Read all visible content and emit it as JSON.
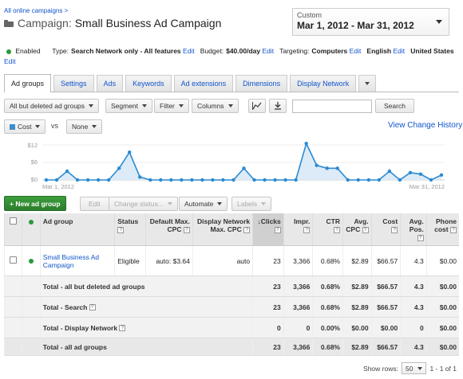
{
  "header": {
    "breadcrumb": "All online campaigns >",
    "title_prefix": "Campaign:",
    "title_name": "Small Business Ad Campaign"
  },
  "date_range": {
    "label": "Custom",
    "value": "Mar 1, 2012 - Mar 31, 2012"
  },
  "settings": {
    "status": "Enabled",
    "type_label": "Type:",
    "type_value": "Search Network only - All features",
    "budget_label": "Budget:",
    "budget_value": "$40.00/day",
    "targeting_label": "Targeting:",
    "targeting_value": "Computers",
    "language": "English",
    "location": "United States",
    "edit": "Edit"
  },
  "tabs": [
    "Ad groups",
    "Settings",
    "Ads",
    "Keywords",
    "Ad extensions",
    "Dimensions",
    "Display Network"
  ],
  "toolbar": {
    "filter_view": "All but deleted ad groups",
    "segment": "Segment",
    "filter": "Filter",
    "columns": "Columns",
    "search_button": "Search"
  },
  "chart_controls": {
    "metric1": "Cost",
    "vs": "vs",
    "metric2": "None",
    "view_history": "View Change History"
  },
  "chart_data": {
    "type": "line",
    "series": [
      {
        "name": "Cost",
        "values": [
          0,
          0,
          3,
          0,
          0,
          0,
          0,
          4,
          9.5,
          1,
          0,
          0,
          0,
          0,
          0,
          0,
          0,
          0,
          0,
          4,
          0,
          0,
          0,
          0,
          0,
          12.5,
          5,
          4,
          4,
          0,
          0,
          0,
          0,
          3,
          0,
          2.5,
          2,
          0,
          1.7
        ]
      },
      {
        "name": "",
        "values": []
      }
    ],
    "x_start_label": "Mar 1, 2012",
    "x_end_label": "Mar 31, 2012",
    "y_ticks": [
      "$12",
      "$6",
      "$0"
    ],
    "ylim": [
      0,
      12
    ],
    "color": "#2a8ad2"
  },
  "actions": {
    "new_ad_group": "+ New ad group",
    "edit": "Edit",
    "change_status": "Change status...",
    "automate": "Automate",
    "labels": "Labels"
  },
  "table": {
    "headers": {
      "ad_group": "Ad group",
      "status": "Status",
      "default_cpc": "Default Max. CPC",
      "display_cpc": "Display Network Max. CPC",
      "clicks": "Clicks",
      "impr": "Impr.",
      "ctr": "CTR",
      "avg_cpc": "Avg. CPC",
      "cost": "Cost",
      "avg_pos": "Avg. Pos.",
      "phone_cost": "Phone cost"
    },
    "help_mark": "?",
    "rows": [
      {
        "name": "Small Business Ad Campaign",
        "status": "Eligible",
        "default_cpc": "auto: $3.64",
        "display_cpc": "auto",
        "clicks": "23",
        "impr": "3,366",
        "ctr": "0.68%",
        "avg_cpc": "$2.89",
        "cost": "$66.57",
        "avg_pos": "4.3",
        "phone_cost": "$0.00"
      }
    ],
    "totals": [
      {
        "name": "Total - all but deleted ad groups",
        "clicks": "23",
        "impr": "3,366",
        "ctr": "0.68%",
        "avg_cpc": "$2.89",
        "cost": "$66.57",
        "avg_pos": "4.3",
        "phone_cost": "$0.00"
      },
      {
        "name": "Total - Search",
        "clicks": "23",
        "impr": "3,366",
        "ctr": "0.68%",
        "avg_cpc": "$2.89",
        "cost": "$66.57",
        "avg_pos": "4.3",
        "phone_cost": "$0.00"
      },
      {
        "name": "Total - Display Network",
        "clicks": "0",
        "impr": "0",
        "ctr": "0.00%",
        "avg_cpc": "$0.00",
        "cost": "$0.00",
        "avg_pos": "0",
        "phone_cost": "$0.00"
      }
    ],
    "grand_total": {
      "name": "Total - all ad groups",
      "clicks": "23",
      "impr": "3,366",
      "ctr": "0.68%",
      "avg_cpc": "$2.89",
      "cost": "$66.57",
      "avg_pos": "4.3",
      "phone_cost": "$0.00"
    }
  },
  "footer": {
    "show_rows_label": "Show rows:",
    "rows_value": "50",
    "range": "1 - 1 of 1"
  }
}
